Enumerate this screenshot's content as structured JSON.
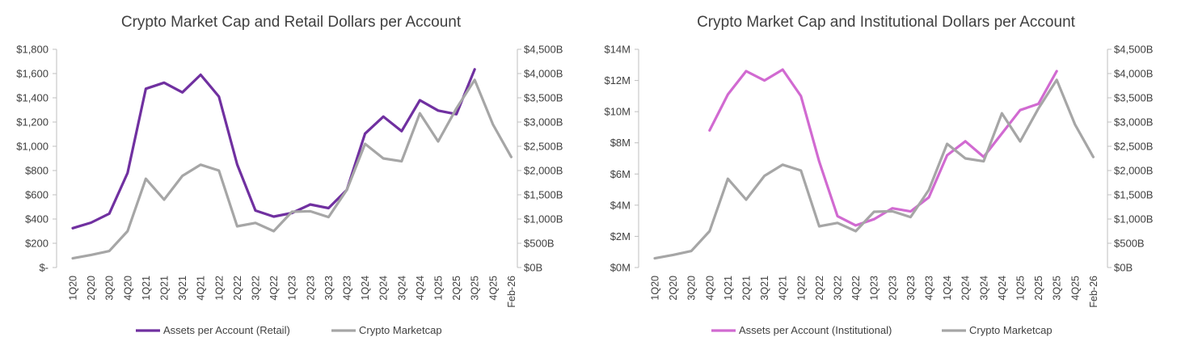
{
  "chart_data": [
    {
      "type": "line",
      "title": "Crypto Market Cap and Retail Dollars per Account",
      "x_category_labels": [
        "1Q20",
        "2Q20",
        "3Q20",
        "4Q20",
        "1Q21",
        "2Q21",
        "3Q21",
        "4Q21",
        "1Q22",
        "2Q22",
        "3Q22",
        "4Q22",
        "1Q23",
        "2Q23",
        "3Q23",
        "4Q23",
        "1Q24",
        "2Q24",
        "3Q24",
        "4Q24",
        "1Q25",
        "2Q25",
        "3Q25",
        "4Q25",
        "Feb-26"
      ],
      "y_left": {
        "ticks": [
          "$-",
          "$200",
          "$400",
          "$600",
          "$800",
          "$1,000",
          "$1,200",
          "$1,400",
          "$1,600",
          "$1,800"
        ],
        "range": [
          0,
          1800
        ]
      },
      "y_right": {
        "ticks": [
          "$0B",
          "$500B",
          "$1,000B",
          "$1,500B",
          "$2,000B",
          "$2,500B",
          "$3,000B",
          "$3,500B",
          "$4,000B",
          "$4,500B"
        ],
        "range": [
          0,
          4500
        ]
      },
      "grid": false,
      "legend_position": "bottom",
      "series": [
        {
          "name": "Assets per Account (Retail)",
          "axis": "left",
          "color": "#7030a0",
          "values": [
            325,
            370,
            445,
            780,
            1475,
            1525,
            1445,
            1590,
            1410,
            850,
            470,
            420,
            450,
            520,
            490,
            640,
            1105,
            1245,
            1125,
            1380,
            1295,
            1265,
            1635,
            null,
            null
          ]
        },
        {
          "name": "Crypto Marketcap",
          "axis": "right",
          "color": "#a6a6a6",
          "values": [
            190,
            260,
            340,
            750,
            1830,
            1400,
            1890,
            2120,
            2000,
            850,
            920,
            750,
            1150,
            1160,
            1040,
            1600,
            2550,
            2250,
            2190,
            3180,
            2600,
            3280,
            3870,
            2950,
            2280
          ]
        }
      ]
    },
    {
      "type": "line",
      "title": "Crypto Market Cap and Institutional Dollars per Account",
      "x_category_labels": [
        "1Q20",
        "2Q20",
        "3Q20",
        "4Q20",
        "1Q21",
        "2Q21",
        "3Q21",
        "4Q21",
        "1Q22",
        "2Q22",
        "3Q22",
        "4Q22",
        "1Q23",
        "2Q23",
        "3Q23",
        "4Q23",
        "1Q24",
        "2Q24",
        "3Q24",
        "4Q24",
        "1Q25",
        "2Q25",
        "3Q25",
        "4Q25",
        "Feb-26"
      ],
      "y_left": {
        "ticks": [
          "$0M",
          "$2M",
          "$4M",
          "$6M",
          "$8M",
          "$10M",
          "$12M",
          "$14M"
        ],
        "range": [
          0,
          14
        ]
      },
      "y_right": {
        "ticks": [
          "$0B",
          "$500B",
          "$1,000B",
          "$1,500B",
          "$2,000B",
          "$2,500B",
          "$3,000B",
          "$3,500B",
          "$4,000B",
          "$4,500B"
        ],
        "range": [
          0,
          4500
        ]
      },
      "grid": false,
      "legend_position": "bottom",
      "series": [
        {
          "name": "Assets per Account (Institutional)",
          "axis": "left",
          "color": "#d16ad1",
          "values": [
            null,
            null,
            null,
            8.8,
            11.1,
            12.6,
            12.0,
            12.7,
            11.0,
            6.8,
            3.3,
            2.7,
            3.1,
            3.8,
            3.6,
            4.5,
            7.2,
            8.1,
            7.1,
            8.6,
            10.1,
            10.5,
            12.6,
            null,
            null
          ]
        },
        {
          "name": "Crypto Marketcap",
          "axis": "right",
          "color": "#a6a6a6",
          "values": [
            190,
            260,
            340,
            750,
            1830,
            1400,
            1890,
            2120,
            2000,
            850,
            920,
            750,
            1150,
            1160,
            1040,
            1600,
            2550,
            2250,
            2190,
            3180,
            2600,
            3280,
            3870,
            2950,
            2280
          ]
        }
      ]
    }
  ]
}
